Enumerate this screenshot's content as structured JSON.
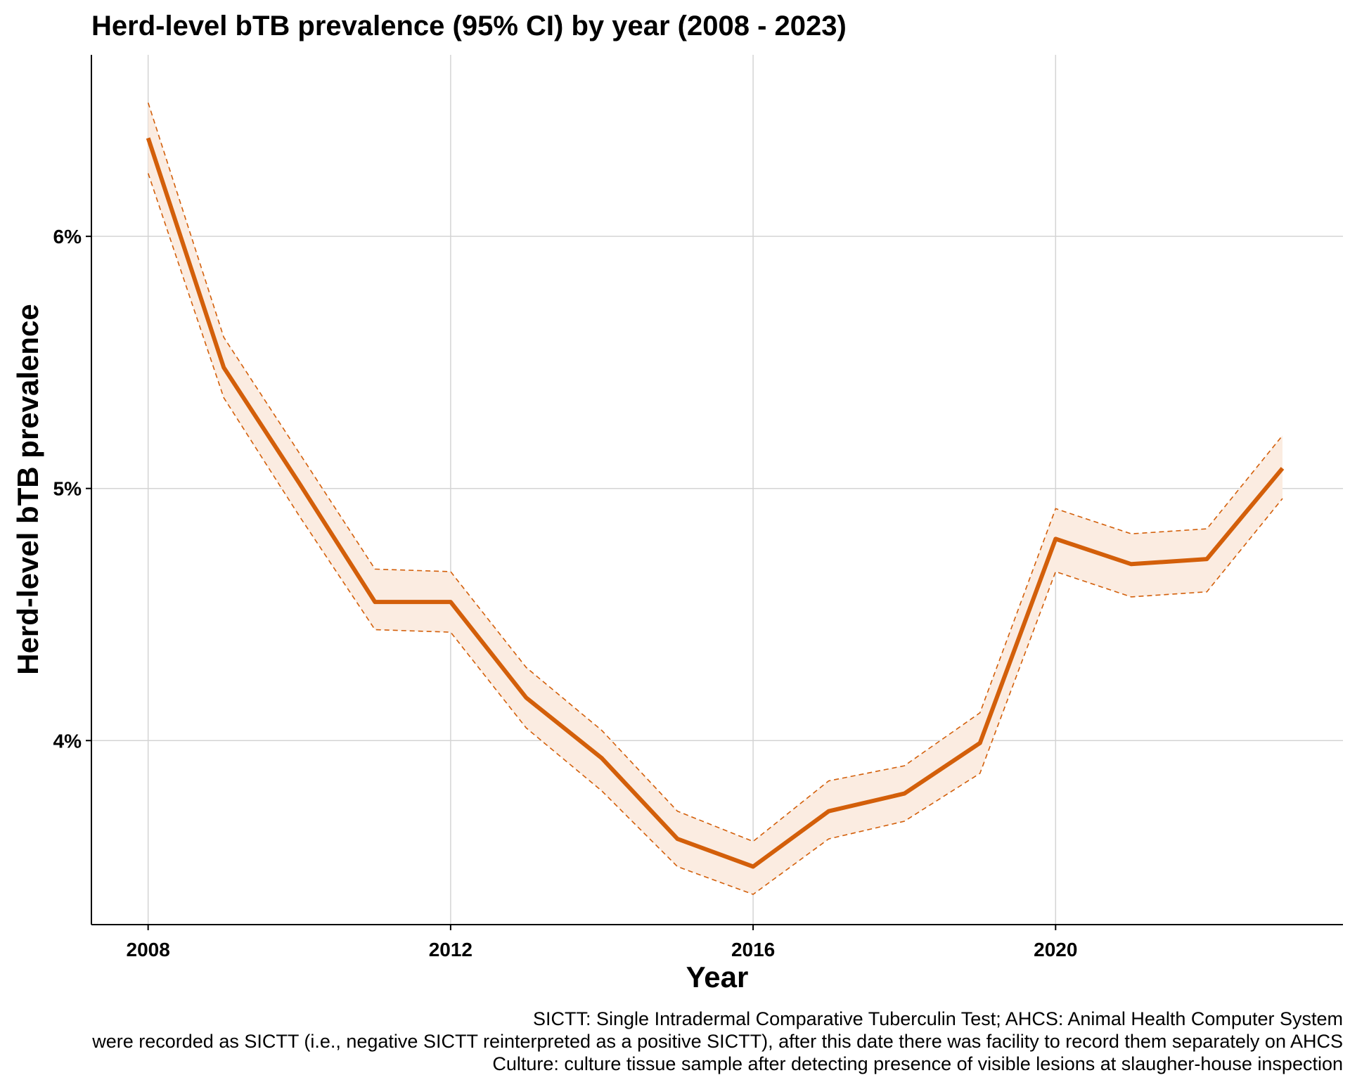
{
  "chart_data": {
    "type": "line",
    "title": "Herd-level bTB prevalence (95% CI) by year (2008 - 2023)",
    "xlabel": "Year",
    "ylabel": "Herd-level bTB prevalence",
    "x": [
      2008,
      2009,
      2010,
      2011,
      2012,
      2013,
      2014,
      2015,
      2016,
      2017,
      2018,
      2019,
      2020,
      2021,
      2022,
      2023
    ],
    "series": [
      {
        "values": [
          6.39,
          5.48,
          5.02,
          4.55,
          4.55,
          4.17,
          3.93,
          3.61,
          3.5,
          3.72,
          3.79,
          3.99,
          4.8,
          4.7,
          4.72,
          5.08
        ],
        "lower": [
          6.25,
          5.36,
          4.89,
          4.44,
          4.43,
          4.05,
          3.8,
          3.5,
          3.39,
          3.61,
          3.68,
          3.87,
          4.67,
          4.57,
          4.59,
          4.96
        ],
        "upper": [
          6.53,
          5.6,
          5.14,
          4.68,
          4.67,
          4.29,
          4.04,
          3.72,
          3.6,
          3.84,
          3.9,
          4.11,
          4.92,
          4.82,
          4.84,
          5.21
        ],
        "color": "#d35f0a",
        "band_color": "#fbece1"
      }
    ],
    "xlim": [
      2007.25,
      2023.8
    ],
    "ylim": [
      3.27,
      6.72
    ],
    "x_ticks": [
      2008,
      2012,
      2016,
      2020
    ],
    "x_tick_labels": [
      "2008",
      "2012",
      "2016",
      "2020"
    ],
    "y_ticks": [
      4,
      5,
      6
    ],
    "y_tick_labels": [
      "4%",
      "5%",
      "6%"
    ],
    "grid": true,
    "caption": [
      "SICTT: Single Intradermal Comparative Tuberculin Test; AHCS: Animal Health Computer System",
      "were recorded as SICTT (i.e., negative SICTT reinterpreted as a positive SICTT), after this date there was facility to record them separately on AHCS",
      "Culture: culture tissue sample after detecting presence of visible lesions at slaugher-house inspection"
    ]
  }
}
